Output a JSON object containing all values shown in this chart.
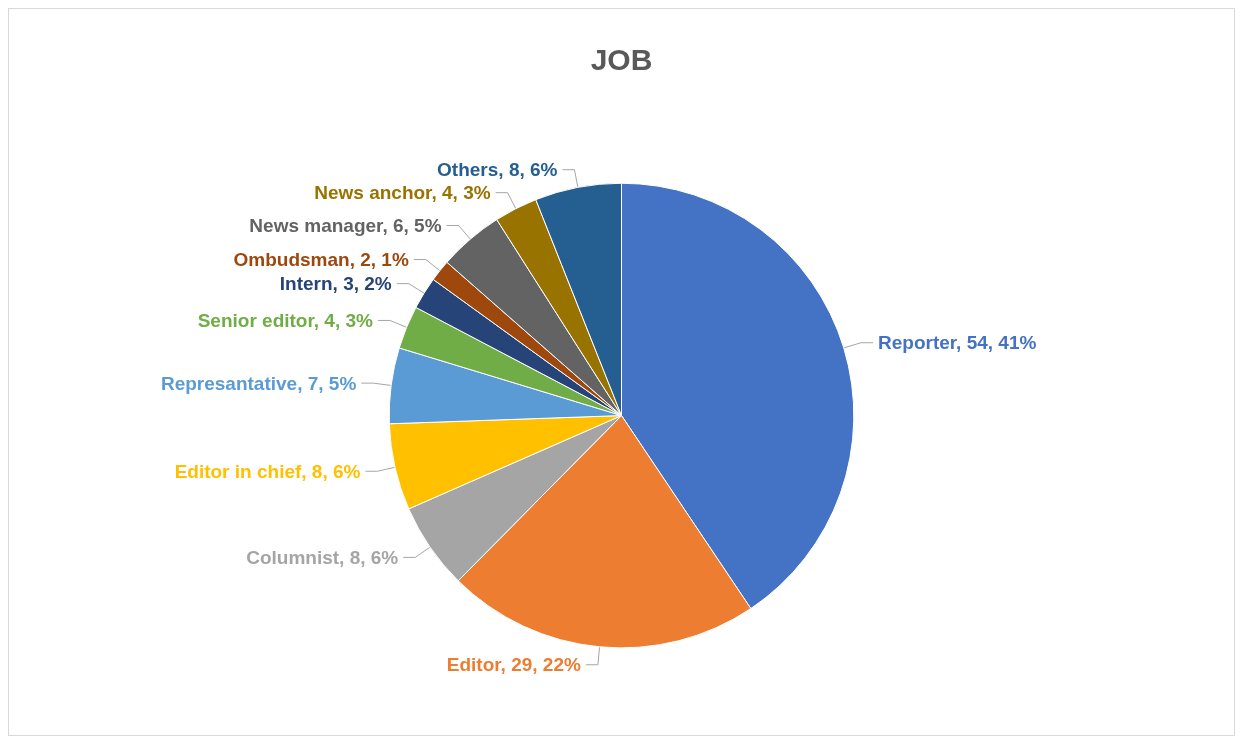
{
  "chart_data": {
    "type": "pie",
    "title": "JOB",
    "categories": [
      "Reporter",
      "Editor",
      "Columnist",
      "Editor in chief",
      "Represantative",
      "Senior editor",
      "Intern",
      "Ombudsman",
      "News manager",
      "News anchor",
      "Others"
    ],
    "values": [
      54,
      29,
      8,
      8,
      7,
      4,
      3,
      2,
      6,
      4,
      8
    ],
    "value_labels": [
      "54, 41%",
      "29, 22%",
      "8, 6%",
      "8, 6%",
      "7, 5%",
      "4, 3%",
      "3, 2%",
      "2, 1%",
      "6, 5%",
      "4, 3%",
      "8, 6%"
    ],
    "colors": [
      "#4472c4",
      "#ed7d31",
      "#a5a5a5",
      "#ffc000",
      "#5b9bd5",
      "#70ad47",
      "#264478",
      "#9e480e",
      "#636363",
      "#997300",
      "#255e91"
    ],
    "legend": false
  }
}
